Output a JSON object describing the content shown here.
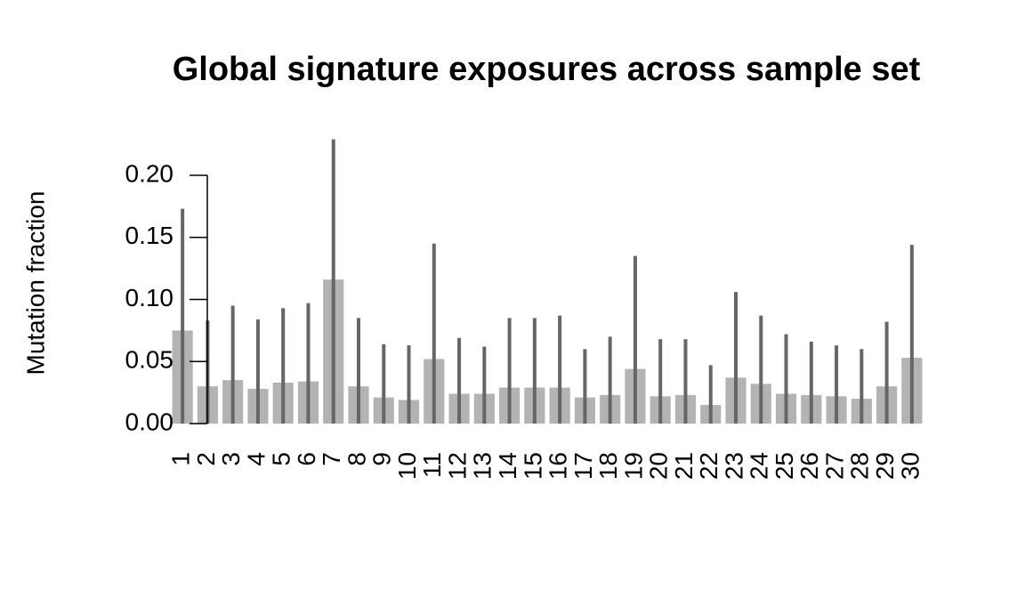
{
  "chart_data": {
    "type": "bar",
    "title": "Global signature exposures across sample set",
    "y_label": "Mutation fraction",
    "categories": [
      "1",
      "2",
      "3",
      "4",
      "5",
      "6",
      "7",
      "8",
      "9",
      "10",
      "11",
      "12",
      "13",
      "14",
      "15",
      "16",
      "17",
      "18",
      "19",
      "20",
      "21",
      "22",
      "23",
      "24",
      "25",
      "26",
      "27",
      "28",
      "29",
      "30"
    ],
    "values": [
      0.075,
      0.03,
      0.035,
      0.028,
      0.033,
      0.034,
      0.116,
      0.03,
      0.021,
      0.019,
      0.052,
      0.024,
      0.024,
      0.029,
      0.029,
      0.029,
      0.021,
      0.023,
      0.044,
      0.022,
      0.023,
      0.015,
      0.037,
      0.032,
      0.024,
      0.023,
      0.022,
      0.02,
      0.03,
      0.053
    ],
    "upper": [
      0.173,
      0.083,
      0.095,
      0.084,
      0.093,
      0.097,
      0.229,
      0.085,
      0.064,
      0.063,
      0.145,
      0.069,
      0.062,
      0.085,
      0.085,
      0.087,
      0.06,
      0.07,
      0.135,
      0.068,
      0.068,
      0.047,
      0.106,
      0.087,
      0.072,
      0.066,
      0.063,
      0.06,
      0.082,
      0.144
    ],
    "color": "#b3b3b3",
    "upper_color": "#666666",
    "ylim": [
      0,
      0.2
    ],
    "yticks": [
      {
        "value": 0,
        "label": "0.00"
      },
      {
        "value": 0.05,
        "label": "0.05"
      },
      {
        "value": 0.1,
        "label": "0.10"
      },
      {
        "value": 0.15,
        "label": "0.15"
      },
      {
        "value": 0.2,
        "label": "0.20"
      }
    ]
  }
}
